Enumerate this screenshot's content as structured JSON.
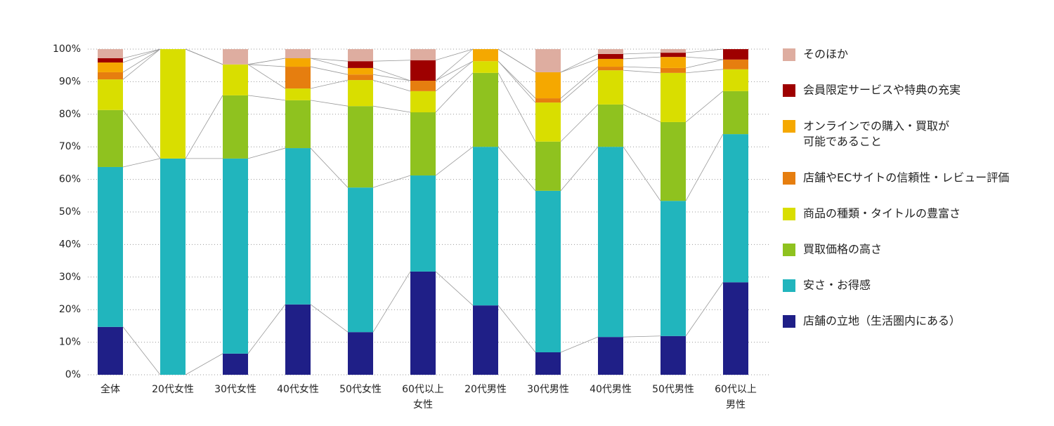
{
  "chart_data": {
    "type": "bar",
    "stacked": true,
    "categories": [
      "全体",
      "20代女性",
      "30代女性",
      "40代女性",
      "50代女性",
      "60代以上\n女性",
      "20代男性",
      "30代男性",
      "40代男性",
      "50代男性",
      "60代以上\n男性"
    ],
    "category_colors": [
      "#222222",
      "#d9477a",
      "#d9477a",
      "#d9477a",
      "#d9477a",
      "#d9477a",
      "#2e7dbf",
      "#2e7dbf",
      "#2e7dbf",
      "#2e7dbf",
      "#2e7dbf"
    ],
    "series": [
      {
        "name": "店舗の立地（生活圏内にある）",
        "color": "#1f1f87",
        "values": [
          14.7,
          0,
          6.5,
          21.6,
          13.1,
          31.7,
          21.3,
          6.9,
          11.6,
          11.9,
          28.4
        ]
      },
      {
        "name": "安さ・お得感",
        "color": "#21b5bd",
        "values": [
          49.1,
          66.4,
          59.9,
          48.0,
          44.4,
          29.5,
          48.7,
          49.6,
          58.4,
          41.5,
          45.5
        ]
      },
      {
        "name": "買取価格の高さ",
        "color": "#8fc21f",
        "values": [
          17.5,
          0,
          19.4,
          14.7,
          25.0,
          19.4,
          22.7,
          15.1,
          13.0,
          24.2,
          13.2
        ]
      },
      {
        "name": "商品の種類・タイトルの豊富さ",
        "color": "#d9de00",
        "values": [
          9.4,
          33.6,
          9.5,
          3.6,
          8.0,
          6.5,
          3.6,
          12.0,
          10.5,
          15.1,
          6.7
        ]
      },
      {
        "name": "店舗やECサイトの信頼性・レビュー評価",
        "color": "#e67e0f",
        "values": [
          2.2,
          0,
          0,
          6.7,
          1.7,
          3.2,
          0,
          1.3,
          1.1,
          1.5,
          3.0
        ]
      },
      {
        "name": "オンラインでの購入・買取が\n可能であること",
        "color": "#f5a800",
        "values": [
          3.0,
          0,
          0,
          2.6,
          2.0,
          0,
          3.7,
          8.0,
          2.4,
          3.4,
          0
        ]
      },
      {
        "name": "会員限定サービスや特典の充実",
        "color": "#9e0000",
        "values": [
          1.3,
          0,
          0,
          0,
          2.1,
          6.3,
          0,
          0,
          1.5,
          1.3,
          3.2
        ]
      },
      {
        "name": "そのほか",
        "color": "#deada0",
        "values": [
          2.8,
          0,
          4.7,
          2.8,
          3.7,
          3.4,
          0,
          7.1,
          1.5,
          1.1,
          0
        ]
      }
    ],
    "ylim": [
      0,
      100
    ],
    "yticks": [
      {
        "value": 0,
        "label": "0%"
      },
      {
        "value": 10,
        "label": "10%"
      },
      {
        "value": 20,
        "label": "20%"
      },
      {
        "value": 30,
        "label": "30%"
      },
      {
        "value": 40,
        "label": "40%"
      },
      {
        "value": 50,
        "label": "50%"
      },
      {
        "value": 60,
        "label": "60%"
      },
      {
        "value": 70,
        "label": "70%"
      },
      {
        "value": 80,
        "label": "80%"
      },
      {
        "value": 90,
        "label": "90%"
      },
      {
        "value": 100,
        "label": "100%"
      }
    ],
    "grid": true,
    "legend": "right"
  }
}
